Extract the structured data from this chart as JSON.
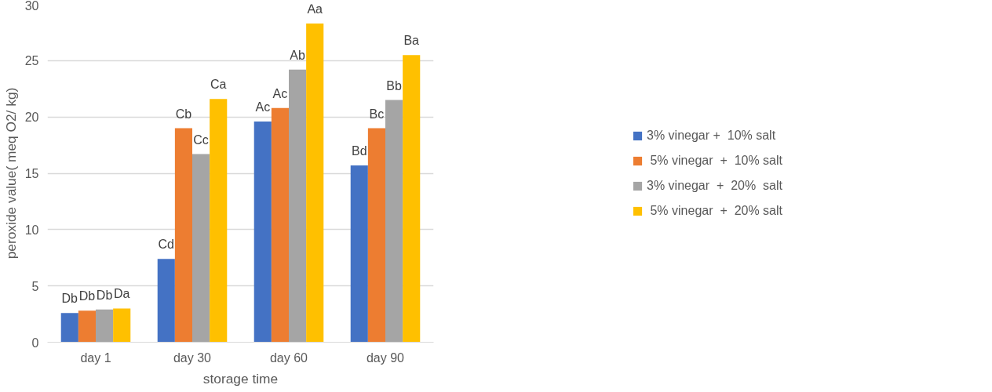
{
  "chart_data": {
    "type": "bar",
    "xlabel": "storage time",
    "ylabel": "peroxide value( meq O2/ kg)",
    "categories": [
      "day 1",
      "day 30",
      "day 60",
      "day 90"
    ],
    "series": [
      {
        "name": "3% vinegar +  10% salt",
        "color": "#4472c4",
        "values": [
          2.6,
          7.4,
          19.6,
          15.7
        ],
        "value_labels": [
          "Db",
          "Cd",
          "Ac",
          "Bd"
        ]
      },
      {
        "name": " 5% vinegar  +  10% salt",
        "color": "#ed7d31",
        "values": [
          2.8,
          19.0,
          20.8,
          19.0
        ],
        "value_labels": [
          "Db",
          "Cb",
          "Ac",
          "Bc"
        ]
      },
      {
        "name": "3% vinegar  +  20%  salt",
        "color": "#a5a5a5",
        "values": [
          2.9,
          16.7,
          24.2,
          21.5
        ],
        "value_labels": [
          "Db",
          "Cc",
          "Ab",
          "Bb"
        ]
      },
      {
        "name": " 5% vinegar  +  20% salt",
        "color": "#ffc000",
        "values": [
          3.0,
          21.6,
          28.3,
          25.5
        ],
        "value_labels": [
          "Da",
          "Ca",
          "Aa",
          "Ba"
        ]
      }
    ],
    "ylim": [
      0,
      30
    ],
    "yticks": [
      0,
      5,
      10,
      15,
      20,
      25,
      30
    ],
    "grid": "y",
    "legend": "right"
  }
}
